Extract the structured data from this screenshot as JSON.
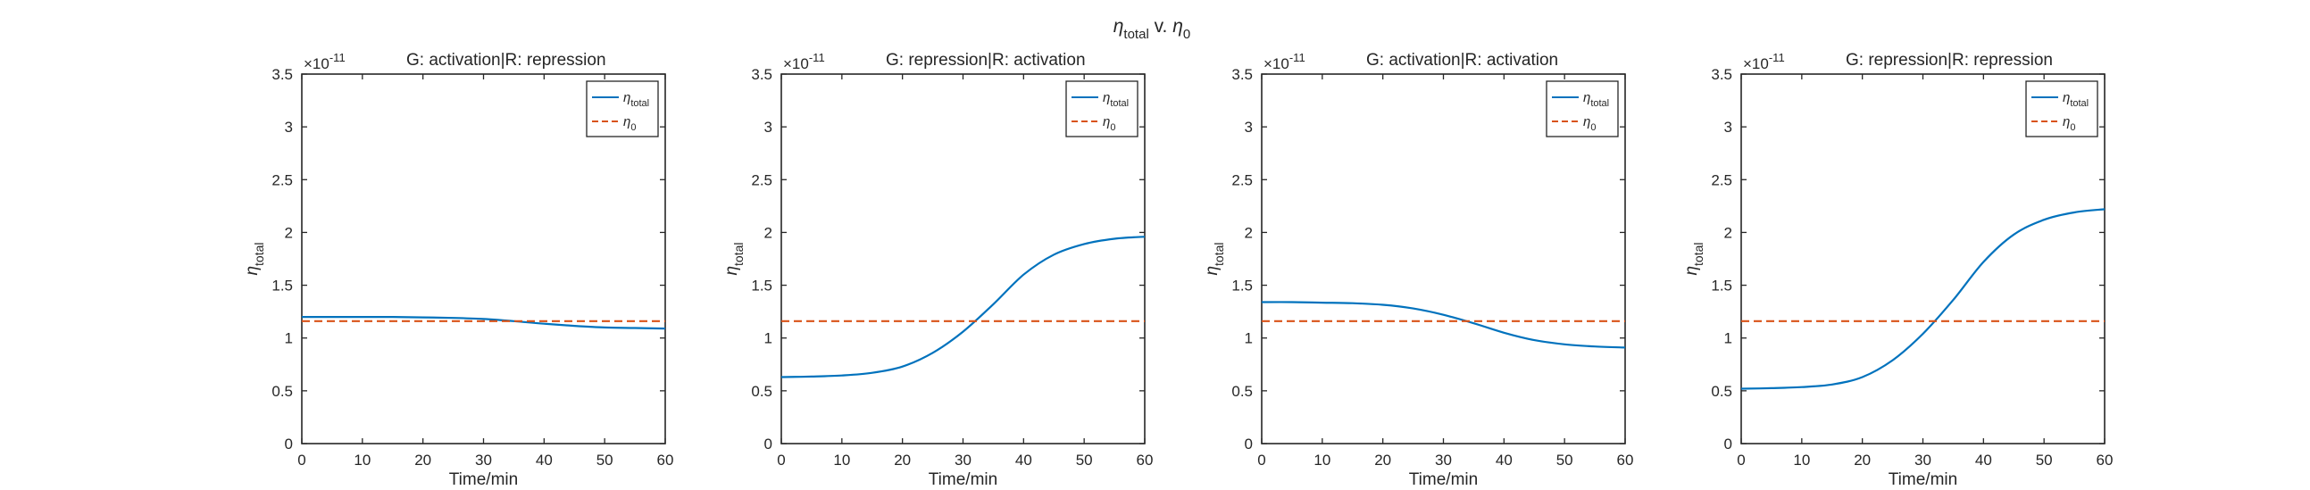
{
  "figure": {
    "suptitle_main": "η",
    "suptitle_sub": "total",
    "suptitle_mid": " v. ",
    "suptitle_main2": "η",
    "suptitle_sub2": "0"
  },
  "colors": {
    "eta_total": "#0072BD",
    "eta_0": "#D95319",
    "axis": "#262626",
    "background": "#ffffff"
  },
  "chart_data": [
    {
      "type": "line",
      "title": "G: activation|R: repression",
      "xlabel": "Time/min",
      "ylabel_main": "η",
      "ylabel_sub": "total",
      "exponent_base": "×10",
      "exponent_power": "-11",
      "xlim": [
        0,
        60
      ],
      "ylim": [
        0,
        3.5
      ],
      "xticks": [
        "0",
        "10",
        "20",
        "30",
        "40",
        "50",
        "60"
      ],
      "yticks": [
        "0",
        "0.5",
        "1",
        "1.5",
        "2",
        "2.5",
        "3",
        "3.5"
      ],
      "legend_position": "top-right",
      "series": [
        {
          "name_main": "η",
          "name_sub": "total",
          "style": "solid",
          "x": [
            0,
            5,
            10,
            15,
            20,
            25,
            30,
            35,
            40,
            45,
            50,
            55,
            60
          ],
          "y": [
            1.2,
            1.2,
            1.2,
            1.2,
            1.195,
            1.19,
            1.18,
            1.16,
            1.135,
            1.115,
            1.1,
            1.095,
            1.09
          ]
        },
        {
          "name_main": "η",
          "name_sub": "0",
          "style": "dashed",
          "x": [
            0,
            60
          ],
          "y": [
            1.16,
            1.16
          ]
        }
      ]
    },
    {
      "type": "line",
      "title": "G: repression|R: activation",
      "xlabel": "Time/min",
      "ylabel_main": "η",
      "ylabel_sub": "total",
      "exponent_base": "×10",
      "exponent_power": "-11",
      "xlim": [
        0,
        60
      ],
      "ylim": [
        0,
        3.5
      ],
      "xticks": [
        "0",
        "10",
        "20",
        "30",
        "40",
        "50",
        "60"
      ],
      "yticks": [
        "0",
        "0.5",
        "1",
        "1.5",
        "2",
        "2.5",
        "3",
        "3.5"
      ],
      "legend_position": "top-right",
      "series": [
        {
          "name_main": "η",
          "name_sub": "total",
          "style": "solid",
          "x": [
            0,
            5,
            10,
            15,
            20,
            25,
            30,
            35,
            40,
            45,
            50,
            55,
            60
          ],
          "y": [
            0.63,
            0.635,
            0.645,
            0.67,
            0.73,
            0.86,
            1.06,
            1.32,
            1.6,
            1.79,
            1.89,
            1.94,
            1.96
          ]
        },
        {
          "name_main": "η",
          "name_sub": "0",
          "style": "dashed",
          "x": [
            0,
            60
          ],
          "y": [
            1.16,
            1.16
          ]
        }
      ]
    },
    {
      "type": "line",
      "title": "G: activation|R: activation",
      "xlabel": "Time/min",
      "ylabel_main": "η",
      "ylabel_sub": "total",
      "exponent_base": "×10",
      "exponent_power": "-11",
      "xlim": [
        0,
        60
      ],
      "ylim": [
        0,
        3.5
      ],
      "xticks": [
        "0",
        "10",
        "20",
        "30",
        "40",
        "50",
        "60"
      ],
      "yticks": [
        "0",
        "0.5",
        "1",
        "1.5",
        "2",
        "2.5",
        "3",
        "3.5"
      ],
      "legend_position": "top-right",
      "series": [
        {
          "name_main": "η",
          "name_sub": "total",
          "style": "solid",
          "x": [
            0,
            5,
            10,
            15,
            20,
            25,
            30,
            35,
            40,
            45,
            50,
            55,
            60
          ],
          "y": [
            1.34,
            1.34,
            1.335,
            1.33,
            1.315,
            1.28,
            1.22,
            1.14,
            1.05,
            0.98,
            0.94,
            0.92,
            0.91
          ]
        },
        {
          "name_main": "η",
          "name_sub": "0",
          "style": "dashed",
          "x": [
            0,
            60
          ],
          "y": [
            1.16,
            1.16
          ]
        }
      ]
    },
    {
      "type": "line",
      "title": "G: repression|R: repression",
      "xlabel": "Time/min",
      "ylabel_main": "η",
      "ylabel_sub": "total",
      "exponent_base": "×10",
      "exponent_power": "-11",
      "xlim": [
        0,
        60
      ],
      "ylim": [
        0,
        3.5
      ],
      "xticks": [
        "0",
        "10",
        "20",
        "30",
        "40",
        "50",
        "60"
      ],
      "yticks": [
        "0",
        "0.5",
        "1",
        "1.5",
        "2",
        "2.5",
        "3",
        "3.5"
      ],
      "legend_position": "top-right",
      "series": [
        {
          "name_main": "η",
          "name_sub": "total",
          "style": "solid",
          "x": [
            0,
            5,
            10,
            15,
            20,
            25,
            30,
            35,
            40,
            45,
            50,
            55,
            60
          ],
          "y": [
            0.52,
            0.525,
            0.535,
            0.56,
            0.63,
            0.79,
            1.04,
            1.36,
            1.72,
            1.98,
            2.12,
            2.19,
            2.22
          ]
        },
        {
          "name_main": "η",
          "name_sub": "0",
          "style": "dashed",
          "x": [
            0,
            60
          ],
          "y": [
            1.16,
            1.16
          ]
        }
      ]
    }
  ]
}
